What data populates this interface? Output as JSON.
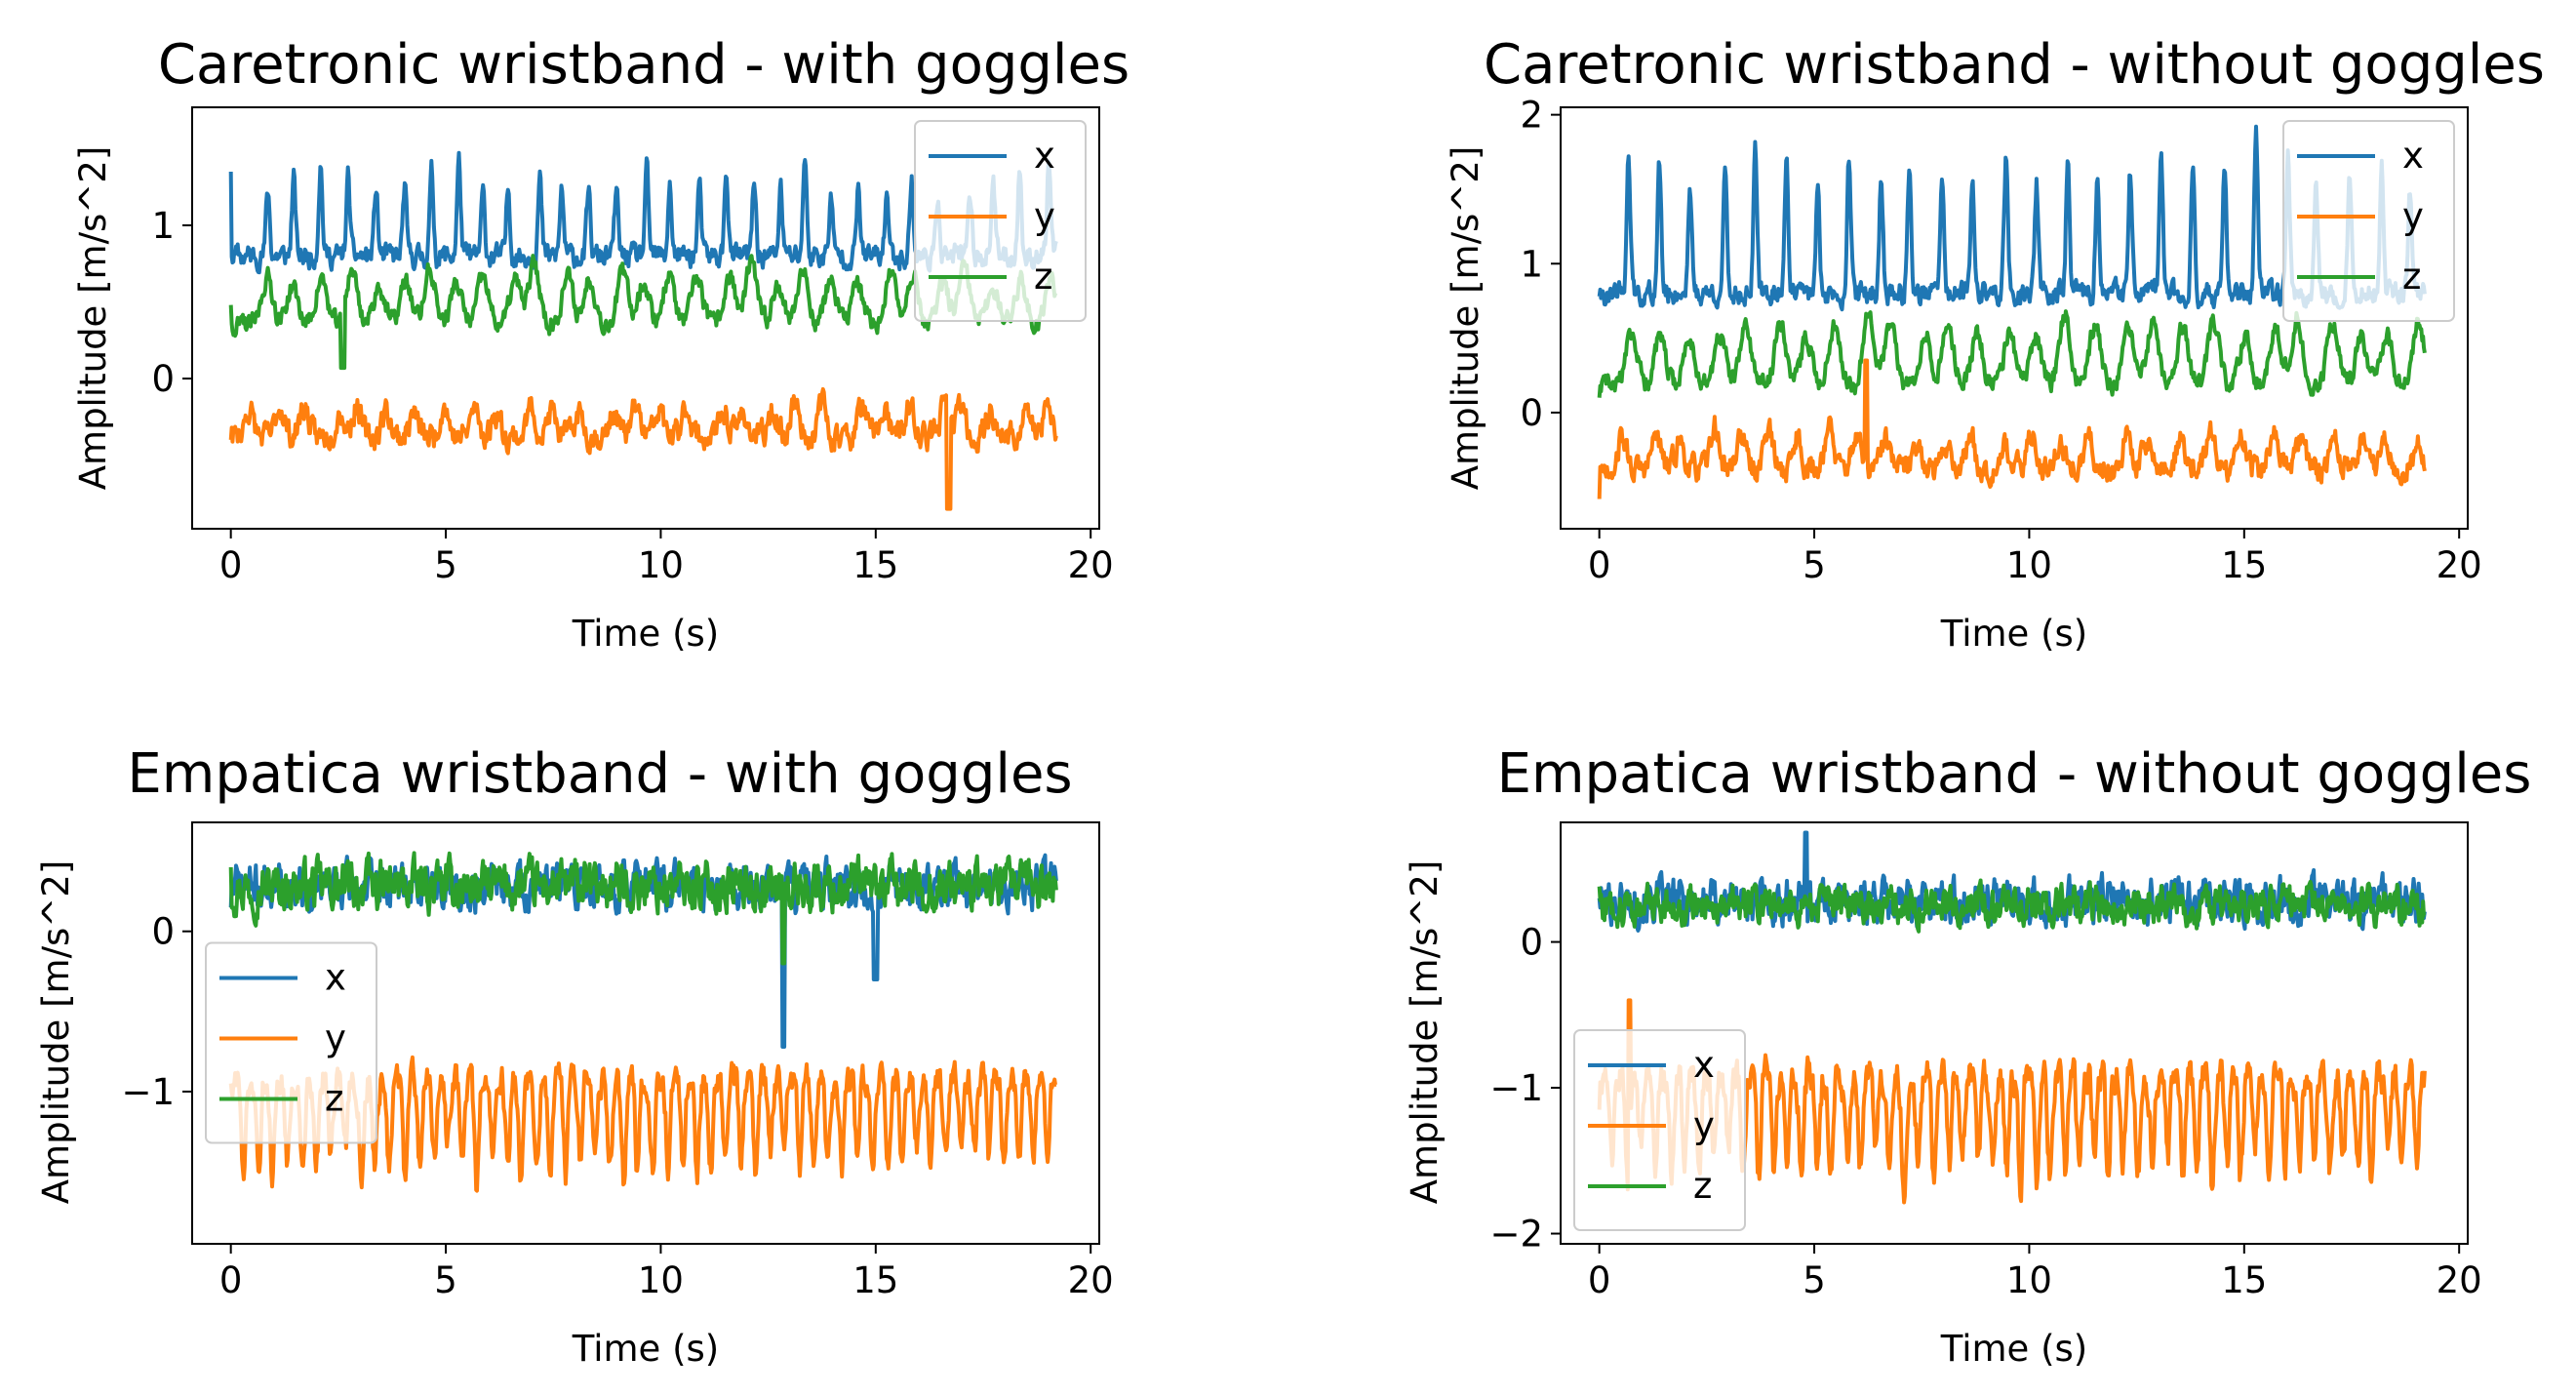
{
  "figure": {
    "colors": {
      "x": "#1f77b4",
      "y": "#ff7f0e",
      "z": "#2ca02c"
    }
  },
  "chart_data": [
    {
      "type": "line",
      "title": "Caretronic wristband - with goggles",
      "xlabel": "Time (s)",
      "ylabel": "Amplitude [m/s^2]",
      "xlim": [
        -0.9,
        20.2
      ],
      "ylim": [
        -0.98,
        1.77
      ],
      "xticks": [
        0,
        5,
        10,
        15,
        20
      ],
      "yticks": [
        0,
        1
      ],
      "legend_loc": "upper-right",
      "duration_s": 19.2,
      "series": [
        {
          "name": "x",
          "color": "#1f77b4",
          "baseline": 0.8,
          "noise": 0.06,
          "peak_count": 30,
          "peak_height": 0.55,
          "peak_width": 0.06,
          "first_peak": 0.9,
          "last_peak": 19.0,
          "jitter": 0.15,
          "start_value": 1.35,
          "seed": 11
        },
        {
          "name": "y",
          "color": "#ff7f0e",
          "baseline": -0.38,
          "noise": 0.07,
          "peak_count": 30,
          "peak_height": 0.22,
          "peak_width": 0.14,
          "first_peak": 0.5,
          "last_peak": 19.0,
          "jitter": 0.3,
          "start_value": -0.4,
          "seed": 23,
          "dip_at": 16.7,
          "dip_value": -0.85
        },
        {
          "name": "z",
          "color": "#2ca02c",
          "baseline": 0.35,
          "noise": 0.05,
          "peak_count": 30,
          "peak_height": 0.35,
          "peak_width": 0.18,
          "first_peak": 0.9,
          "last_peak": 19.0,
          "jitter": 0.2,
          "start_value": 0.48,
          "seed": 37,
          "dip_at": 2.6,
          "dip_value": 0.07
        }
      ]
    },
    {
      "type": "line",
      "title": "Caretronic wristband - without goggles",
      "xlabel": "Time (s)",
      "ylabel": "Amplitude [m/s^2]",
      "xlim": [
        -0.9,
        20.2
      ],
      "ylim": [
        -0.78,
        2.05
      ],
      "xticks": [
        0,
        5,
        10,
        15,
        20
      ],
      "yticks": [
        0,
        1,
        2
      ],
      "legend_loc": "upper-right",
      "duration_s": 19.2,
      "series": [
        {
          "name": "x",
          "color": "#1f77b4",
          "baseline": 0.8,
          "noise": 0.06,
          "peak_count": 26,
          "peak_height": 0.95,
          "peak_width": 0.06,
          "first_peak": 0.7,
          "last_peak": 18.9,
          "jitter": 0.1,
          "start_value": 0.78,
          "seed": 41
        },
        {
          "name": "y",
          "color": "#ff7f0e",
          "baseline": -0.38,
          "noise": 0.07,
          "peak_count": 28,
          "peak_height": 0.25,
          "peak_width": 0.14,
          "first_peak": 0.6,
          "last_peak": 19.0,
          "jitter": 0.3,
          "start_value": -0.58,
          "seed": 53,
          "spike_at": 6.2,
          "spike_value": 0.35
        },
        {
          "name": "z",
          "color": "#2ca02c",
          "baseline": 0.18,
          "noise": 0.05,
          "peak_count": 28,
          "peak_height": 0.45,
          "peak_width": 0.18,
          "first_peak": 0.8,
          "last_peak": 19.0,
          "jitter": 0.2,
          "start_value": 0.1,
          "seed": 67
        }
      ]
    },
    {
      "type": "line",
      "title": "Empatica wristband - with goggles",
      "xlabel": "Time (s)",
      "ylabel": "Amplitude [m/s^2]",
      "xlim": [
        -0.9,
        20.2
      ],
      "ylim": [
        -1.95,
        0.68
      ],
      "xticks": [
        0,
        5,
        10,
        15,
        20
      ],
      "yticks": [
        -1,
        0
      ],
      "legend_loc": "center-left",
      "duration_s": 19.2,
      "series": [
        {
          "name": "x",
          "color": "#1f77b4",
          "baseline": 0.28,
          "noise": 0.11,
          "peak_count": 0,
          "peak_height": 0,
          "peak_width": 0.1,
          "first_peak": 0,
          "last_peak": 0,
          "jitter": 0,
          "start_value": 0.15,
          "seed": 71,
          "spike_at": 12.85,
          "spike_value": -0.72,
          "dip2_at": 15.0,
          "dip2_value": -0.3
        },
        {
          "name": "y",
          "color": "#ff7f0e",
          "baseline": -0.92,
          "noise": 0.08,
          "peak_count": 56,
          "peak_height": -0.62,
          "peak_width": 0.07,
          "first_peak": 0.3,
          "last_peak": 19.0,
          "jitter": 0.05,
          "start_value": -0.95,
          "seed": 83
        },
        {
          "name": "z",
          "color": "#2ca02c",
          "baseline": 0.28,
          "noise": 0.12,
          "peak_count": 0,
          "peak_height": 0,
          "peak_width": 0.1,
          "first_peak": 0,
          "last_peak": 0,
          "jitter": 0,
          "start_value": 0.4,
          "seed": 97,
          "spike_at": 12.85,
          "spike_value": -0.2
        }
      ]
    },
    {
      "type": "line",
      "title": "Empatica wristband - without goggles",
      "xlabel": "Time (s)",
      "ylabel": "Amplitude [m/s^2]",
      "xlim": [
        -0.9,
        20.2
      ],
      "ylim": [
        -2.07,
        0.82
      ],
      "xticks": [
        0,
        5,
        10,
        15,
        20
      ],
      "yticks": [
        -2,
        -1,
        0
      ],
      "legend_loc": "lower-left",
      "duration_s": 19.2,
      "series": [
        {
          "name": "x",
          "color": "#1f77b4",
          "baseline": 0.28,
          "noise": 0.12,
          "peak_count": 0,
          "peak_height": 0,
          "peak_width": 0.1,
          "first_peak": 0,
          "last_peak": 0,
          "jitter": 0,
          "start_value": 0.3,
          "seed": 101,
          "spike_at": 4.8,
          "spike_value": 0.75
        },
        {
          "name": "y",
          "color": "#ff7f0e",
          "baseline": -0.92,
          "noise": 0.1,
          "peak_count": 56,
          "peak_height": -0.72,
          "peak_width": 0.07,
          "first_peak": 0.3,
          "last_peak": 19.0,
          "jitter": 0.05,
          "start_value": -1.15,
          "seed": 113,
          "spike_at": 0.7,
          "spike_value": -0.4
        },
        {
          "name": "z",
          "color": "#2ca02c",
          "baseline": 0.25,
          "noise": 0.1,
          "peak_count": 0,
          "peak_height": 0,
          "peak_width": 0.1,
          "first_peak": 0,
          "last_peak": 0,
          "jitter": 0,
          "start_value": 0.38,
          "seed": 127
        }
      ]
    }
  ]
}
